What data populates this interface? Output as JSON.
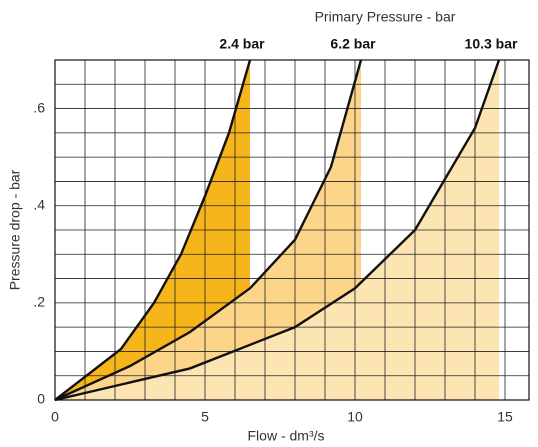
{
  "chart_data": {
    "type": "line",
    "title": "Primary Pressure - bar",
    "xlabel": "Flow - dm³/s",
    "ylabel": "Pressure drop - bar",
    "xlim": [
      0,
      15.8
    ],
    "ylim": [
      0,
      0.7
    ],
    "xticks": [
      0,
      5,
      10,
      15
    ],
    "yticks": [
      0,
      {
        "value": 0.2,
        "label": ".2"
      },
      {
        "value": 0.4,
        "label": ".4"
      },
      {
        "value": 0.6,
        "label": ".6"
      }
    ],
    "xminor": [
      1,
      2,
      3,
      4,
      6,
      7,
      8,
      9,
      11,
      12,
      13,
      14
    ],
    "yminor": [
      0.05,
      0.1,
      0.15,
      0.25,
      0.3,
      0.35,
      0.45,
      0.5,
      0.55,
      0.65
    ],
    "grid": true,
    "series": [
      {
        "name": "2.4 bar",
        "color": "#f7b51c",
        "x": [
          0,
          2.2,
          3.3,
          4.2,
          5,
          5.8,
          6.5
        ],
        "values": [
          0,
          0.105,
          0.2,
          0.3,
          0.42,
          0.55,
          0.7
        ]
      },
      {
        "name": "6.2 bar",
        "color": "#fcd58a",
        "x": [
          0,
          2.5,
          4.5,
          6.5,
          8,
          9.2,
          10.2
        ],
        "values": [
          0,
          0.07,
          0.14,
          0.23,
          0.33,
          0.48,
          0.7
        ]
      },
      {
        "name": "10.3 bar",
        "color": "#fde4b3",
        "x": [
          0,
          4.5,
          8,
          10,
          12,
          14,
          14.8
        ],
        "values": [
          0,
          0.065,
          0.15,
          0.23,
          0.35,
          0.56,
          0.7
        ]
      }
    ]
  }
}
